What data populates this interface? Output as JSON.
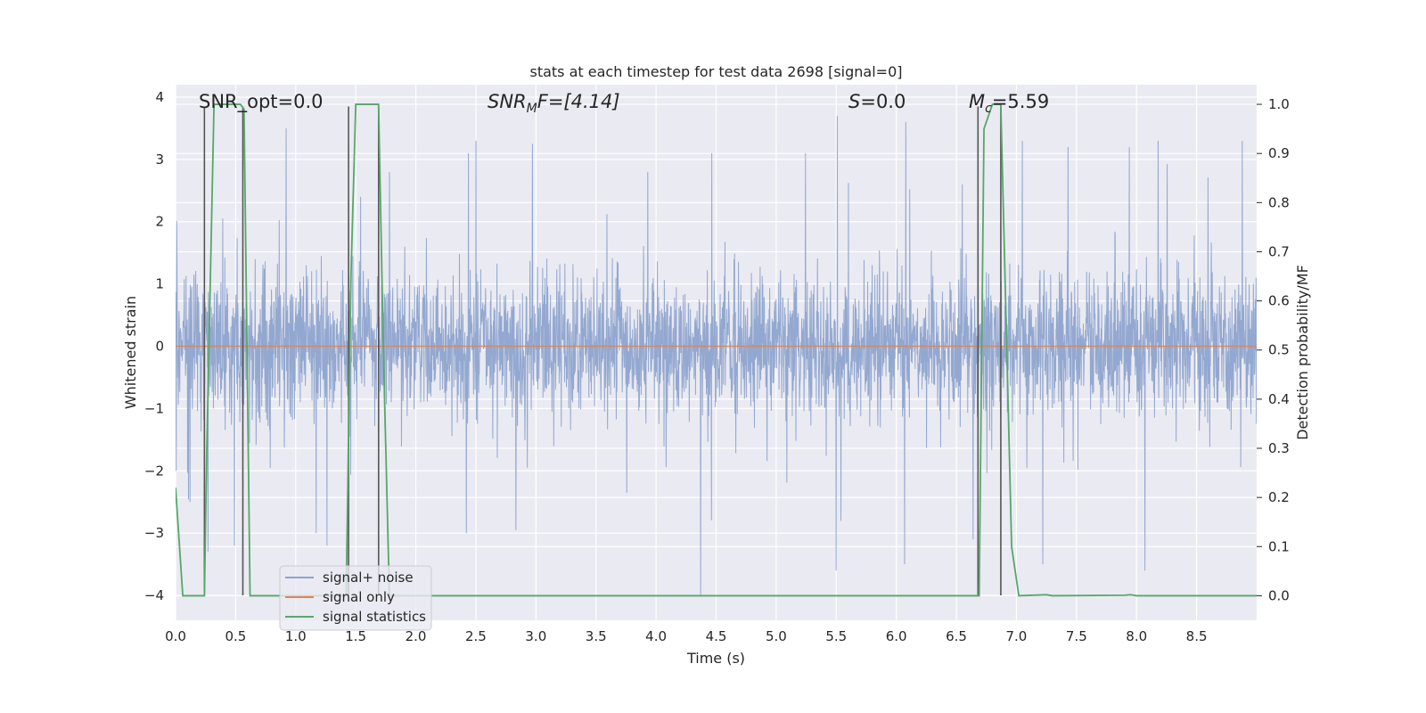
{
  "chart_data": {
    "type": "line",
    "title": "stats at each timestep for test data 2698 [signal=0]",
    "xlabel": "Time (s)",
    "ylabel_left": "Whitened strain",
    "ylabel_right": "Detection probability/MF",
    "xlim": [
      0,
      9.0
    ],
    "ylim_left": [
      -4.4,
      4.2
    ],
    "ylim_right": [
      -0.05,
      1.04
    ],
    "x_ticks": [
      0.0,
      0.5,
      1.0,
      1.5,
      2.0,
      2.5,
      3.0,
      3.5,
      4.0,
      4.5,
      5.0,
      5.5,
      6.0,
      6.5,
      7.0,
      7.5,
      8.0,
      8.5
    ],
    "x_tick_labels": [
      "0.0",
      "0.5",
      "1.0",
      "1.5",
      "2.0",
      "2.5",
      "3.0",
      "3.5",
      "4.0",
      "4.5",
      "5.0",
      "5.5",
      "6.0",
      "6.5",
      "7.0",
      "7.5",
      "8.0",
      "8.5"
    ],
    "y_ticks_left": [
      -4,
      -3,
      -2,
      -1,
      0,
      1,
      2,
      3,
      4
    ],
    "y_tick_labels_left": [
      "−4",
      "−3",
      "−2",
      "−1",
      "0",
      "1",
      "2",
      "3",
      "4"
    ],
    "y_ticks_right": [
      0.0,
      0.1,
      0.2,
      0.3,
      0.4,
      0.5,
      0.6,
      0.7,
      0.8,
      0.9,
      1.0
    ],
    "y_tick_labels_right": [
      "0.0",
      "0.1",
      "0.2",
      "0.3",
      "0.4",
      "0.5",
      "0.6",
      "0.7",
      "0.8",
      "0.9",
      "1.0"
    ],
    "annotations": {
      "snr_opt": "SNR_opt=0.0",
      "snr_mf_main": "SNR",
      "snr_mf_sub": "M",
      "snr_mf_rest": "F=[4.14]",
      "s_main": "S",
      "s_rest": "=0.0",
      "mc_main": "M",
      "mc_sub": "c",
      "mc_rest": "=5.59"
    },
    "noise": {
      "samples": 3600,
      "sigma": 0.55,
      "seed": 2698,
      "spikes": [
        [
          0.92,
          3.5
        ],
        [
          2.5,
          3.3
        ],
        [
          2.97,
          3.25
        ],
        [
          5.51,
          3.7
        ],
        [
          6.08,
          3.6
        ],
        [
          7.05,
          3.3
        ],
        [
          7.43,
          3.2
        ],
        [
          7.94,
          3.2
        ],
        [
          8.88,
          3.3
        ],
        [
          8.18,
          3.3
        ],
        [
          4.37,
          -4.0
        ],
        [
          8.07,
          -3.6
        ],
        [
          6.07,
          -3.5
        ],
        [
          0.27,
          -3.3
        ],
        [
          0.49,
          -3.2
        ],
        [
          1.26,
          -3.2
        ],
        [
          1.17,
          -3.0
        ],
        [
          2.42,
          -3.0
        ],
        [
          6.64,
          -3.1
        ],
        [
          7.22,
          -3.5
        ],
        [
          0.12,
          -2.5
        ],
        [
          5.54,
          -2.8
        ],
        [
          1.54,
          2.4
        ],
        [
          6.55,
          2.6
        ],
        [
          3.93,
          2.8
        ]
      ]
    },
    "vlines": [
      0.24,
      0.56,
      1.44,
      1.69,
      6.68,
      6.87
    ],
    "series": [
      {
        "name": "signal+ noise",
        "color": "#8ea4cd"
      },
      {
        "name": "signal only",
        "color": "#dd8452",
        "y": 0
      },
      {
        "name": "signal statistics",
        "color": "#55a868",
        "points": [
          [
            0.0,
            0.22
          ],
          [
            0.06,
            0.0
          ],
          [
            0.24,
            0.0
          ],
          [
            0.26,
            0.3
          ],
          [
            0.32,
            1.0
          ],
          [
            0.54,
            1.0
          ],
          [
            0.57,
            0.99
          ],
          [
            0.62,
            0.0
          ],
          [
            0.9,
            0.0
          ],
          [
            1.42,
            0.0
          ],
          [
            1.46,
            0.65
          ],
          [
            1.5,
            1.0
          ],
          [
            1.69,
            1.0
          ],
          [
            1.73,
            0.5
          ],
          [
            1.78,
            0.0
          ],
          [
            6.69,
            0.0
          ],
          [
            6.73,
            0.95
          ],
          [
            6.8,
            1.0
          ],
          [
            6.87,
            1.0
          ],
          [
            6.96,
            0.1
          ],
          [
            7.02,
            0.0
          ],
          [
            7.25,
            0.002
          ],
          [
            7.3,
            0.0
          ],
          [
            7.9,
            0.001
          ],
          [
            7.95,
            0.002
          ],
          [
            8.0,
            0.0
          ],
          [
            9.0,
            0.0
          ]
        ]
      }
    ],
    "legend": [
      {
        "label": "signal+ noise",
        "color": "#8ea4cd"
      },
      {
        "label": "signal only",
        "color": "#dd8452"
      },
      {
        "label": "signal statistics",
        "color": "#55a868"
      }
    ],
    "legend_position": "lower-left"
  }
}
